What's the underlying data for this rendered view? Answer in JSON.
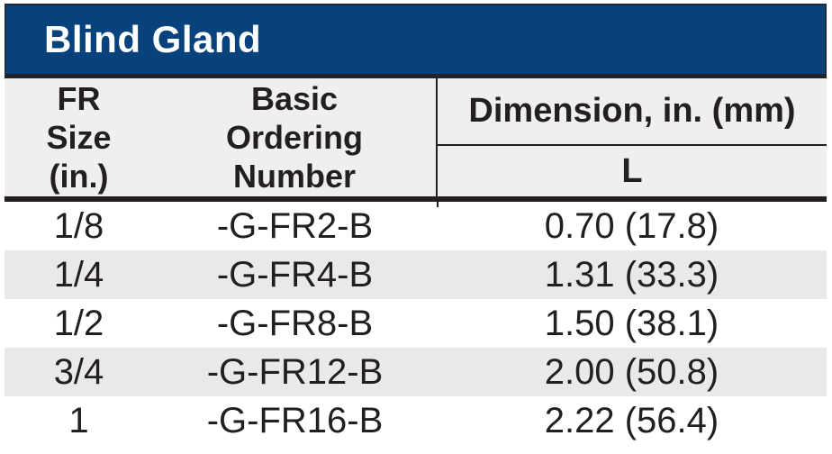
{
  "table": {
    "title": "Blind Gland",
    "header": {
      "size_col": "FR\nSize\n(in.)",
      "ordering_col": "Basic\nOrdering\nNumber",
      "dimension_group": "Dimension, in. (mm)",
      "dimension_sub": "L"
    },
    "rows": [
      {
        "size": "1/8",
        "ordering_number": "-G-FR2-B",
        "l": "0.70 (17.8)"
      },
      {
        "size": "1/4",
        "ordering_number": "-G-FR4-B",
        "l": "1.31 (33.3)"
      },
      {
        "size": "1/2",
        "ordering_number": "-G-FR8-B",
        "l": "1.50 (38.1)"
      },
      {
        "size": "3/4",
        "ordering_number": "-G-FR12-B",
        "l": "2.00 (50.8)"
      },
      {
        "size": "1",
        "ordering_number": "-G-FR16-B",
        "l": "2.22 (56.4)"
      }
    ]
  },
  "colors": {
    "brand_blue": "#07427d",
    "titlebar_outline": "#1d2b3c",
    "rule_dark": "#231f20",
    "header_bg": "#efeef0",
    "alt_row_bg": "#e9e8eb",
    "text": "#231f20",
    "title_text": "#ffffff"
  }
}
